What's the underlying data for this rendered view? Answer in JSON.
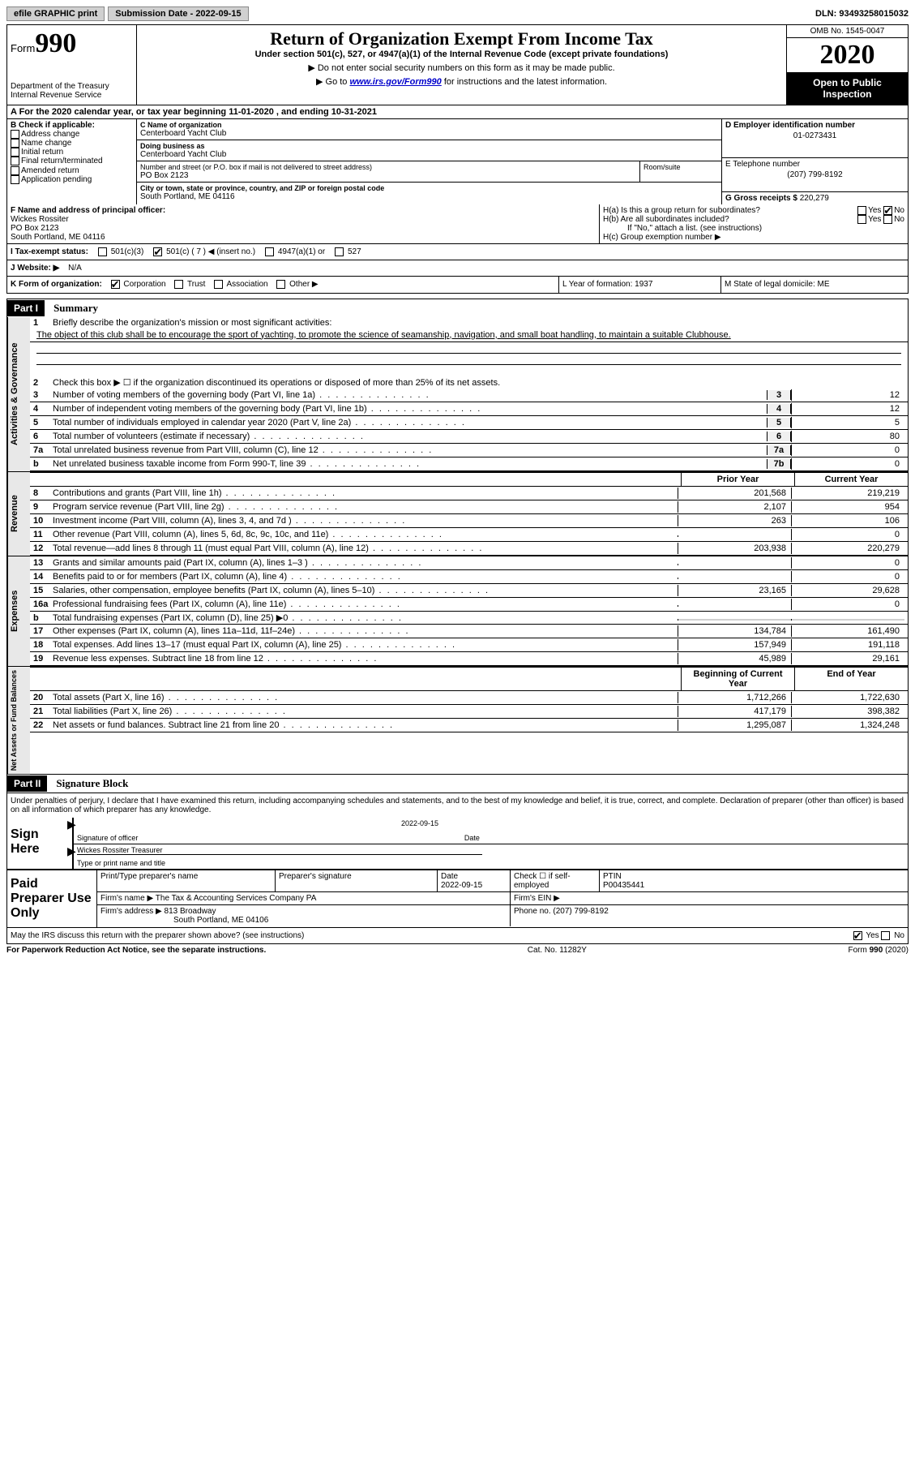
{
  "topbar": {
    "efile": "efile GRAPHIC print",
    "submission": "Submission Date - 2022-09-15",
    "dln": "DLN: 93493258015032"
  },
  "header": {
    "form_prefix": "Form",
    "form_number": "990",
    "dept": "Department of the Treasury\nInternal Revenue Service",
    "title": "Return of Organization Exempt From Income Tax",
    "subtitle": "Under section 501(c), 527, or 4947(a)(1) of the Internal Revenue Code (except private foundations)",
    "caution1": "▶ Do not enter social security numbers on this form as it may be made public.",
    "caution2_pre": "▶ Go to ",
    "caution2_link": "www.irs.gov/Form990",
    "caution2_post": " for instructions and the latest information.",
    "omb": "OMB No. 1545-0047",
    "year": "2020",
    "inspection": "Open to Public Inspection"
  },
  "row_a": "A  For the 2020 calendar year, or tax year beginning 11-01-2020     , and ending 10-31-2021",
  "section_b": {
    "label": "B Check if applicable:",
    "opts": [
      "Address change",
      "Name change",
      "Initial return",
      "Final return/terminated",
      "Amended return",
      "Application pending"
    ]
  },
  "section_c": {
    "name_label": "C Name of organization",
    "name": "Centerboard Yacht Club",
    "dba_label": "Doing business as",
    "dba": "Centerboard Yacht Club",
    "addr_label": "Number and street (or P.O. box if mail is not delivered to street address)",
    "room_label": "Room/suite",
    "addr": "PO Box 2123",
    "city_label": "City or town, state or province, country, and ZIP or foreign postal code",
    "city": "South Portland, ME  04116"
  },
  "section_d": {
    "label": "D Employer identification number",
    "value": "01-0273431"
  },
  "section_e": {
    "label": "E Telephone number",
    "value": "(207) 799-8192"
  },
  "section_g": {
    "label": "G Gross receipts $",
    "value": "220,279"
  },
  "section_f": {
    "label": "F Name and address of principal officer:",
    "name": "Wickes Rossiter",
    "addr1": "PO Box 2123",
    "addr2": "South Portland, ME  04116"
  },
  "section_h": {
    "ha": "H(a)  Is this a group return for subordinates?",
    "hb": "H(b)  Are all subordinates included?",
    "hb_note": "If \"No,\" attach a list. (see instructions)",
    "hc": "H(c)  Group exemption number ▶"
  },
  "status": {
    "label_i": "I   Tax-exempt status:",
    "opt1": "501(c)(3)",
    "opt2": "501(c) ( 7 ) ◀ (insert no.)",
    "opt3": "4947(a)(1) or",
    "opt4": "527"
  },
  "website": {
    "label": "J   Website: ▶",
    "value": "N/A"
  },
  "row_k": {
    "label": "K Form of organization:",
    "opts": [
      "Corporation",
      "Trust",
      "Association",
      "Other ▶"
    ],
    "l": "L Year of formation: 1937",
    "m": "M State of legal domicile: ME"
  },
  "part1": {
    "header": "Part I",
    "title": "Summary",
    "q1": "Briefly describe the organization's mission or most significant activities:",
    "mission": "The object of this club shall be to encourage the sport of yachting, to promote the science of seamanship, navigation, and small boat handling, to maintain a suitable Clubhouse.",
    "q2": "Check this box ▶ ☐  if the organization discontinued its operations or disposed of more than 25% of its net assets.",
    "lines_gov": [
      {
        "n": "3",
        "t": "Number of voting members of the governing body (Part VI, line 1a)",
        "box": "3",
        "v": "12"
      },
      {
        "n": "4",
        "t": "Number of independent voting members of the governing body (Part VI, line 1b)",
        "box": "4",
        "v": "12"
      },
      {
        "n": "5",
        "t": "Total number of individuals employed in calendar year 2020 (Part V, line 2a)",
        "box": "5",
        "v": "5"
      },
      {
        "n": "6",
        "t": "Total number of volunteers (estimate if necessary)",
        "box": "6",
        "v": "80"
      },
      {
        "n": "7a",
        "t": "Total unrelated business revenue from Part VIII, column (C), line 12",
        "box": "7a",
        "v": "0"
      },
      {
        "n": "b",
        "t": "Net unrelated business taxable income from Form 990-T, line 39",
        "box": "7b",
        "v": "0"
      }
    ],
    "col_prior": "Prior Year",
    "col_current": "Current Year",
    "lines_rev": [
      {
        "n": "8",
        "t": "Contributions and grants (Part VIII, line 1h)",
        "p": "201,568",
        "c": "219,219"
      },
      {
        "n": "9",
        "t": "Program service revenue (Part VIII, line 2g)",
        "p": "2,107",
        "c": "954"
      },
      {
        "n": "10",
        "t": "Investment income (Part VIII, column (A), lines 3, 4, and 7d )",
        "p": "263",
        "c": "106"
      },
      {
        "n": "11",
        "t": "Other revenue (Part VIII, column (A), lines 5, 6d, 8c, 9c, 10c, and 11e)",
        "p": "",
        "c": "0"
      },
      {
        "n": "12",
        "t": "Total revenue—add lines 8 through 11 (must equal Part VIII, column (A), line 12)",
        "p": "203,938",
        "c": "220,279"
      }
    ],
    "lines_exp": [
      {
        "n": "13",
        "t": "Grants and similar amounts paid (Part IX, column (A), lines 1–3 )",
        "p": "",
        "c": "0"
      },
      {
        "n": "14",
        "t": "Benefits paid to or for members (Part IX, column (A), line 4)",
        "p": "",
        "c": "0"
      },
      {
        "n": "15",
        "t": "Salaries, other compensation, employee benefits (Part IX, column (A), lines 5–10)",
        "p": "23,165",
        "c": "29,628"
      },
      {
        "n": "16a",
        "t": "Professional fundraising fees (Part IX, column (A), line 11e)",
        "p": "",
        "c": "0"
      },
      {
        "n": "b",
        "t": "Total fundraising expenses (Part IX, column (D), line 25) ▶0",
        "p": "shaded",
        "c": "shaded"
      },
      {
        "n": "17",
        "t": "Other expenses (Part IX, column (A), lines 11a–11d, 11f–24e)",
        "p": "134,784",
        "c": "161,490"
      },
      {
        "n": "18",
        "t": "Total expenses. Add lines 13–17 (must equal Part IX, column (A), line 25)",
        "p": "157,949",
        "c": "191,118"
      },
      {
        "n": "19",
        "t": "Revenue less expenses. Subtract line 18 from line 12",
        "p": "45,989",
        "c": "29,161"
      }
    ],
    "col_begin": "Beginning of Current Year",
    "col_end": "End of Year",
    "lines_net": [
      {
        "n": "20",
        "t": "Total assets (Part X, line 16)",
        "p": "1,712,266",
        "c": "1,722,630"
      },
      {
        "n": "21",
        "t": "Total liabilities (Part X, line 26)",
        "p": "417,179",
        "c": "398,382"
      },
      {
        "n": "22",
        "t": "Net assets or fund balances. Subtract line 21 from line 20",
        "p": "1,295,087",
        "c": "1,324,248"
      }
    ],
    "side_gov": "Activities & Governance",
    "side_rev": "Revenue",
    "side_exp": "Expenses",
    "side_net": "Net Assets or Fund Balances"
  },
  "part2": {
    "header": "Part II",
    "title": "Signature Block",
    "penalty": "Under penalties of perjury, I declare that I have examined this return, including accompanying schedules and statements, and to the best of my knowledge and belief, it is true, correct, and complete. Declaration of preparer (other than officer) is based on all information of which preparer has any knowledge.",
    "sign_here": "Sign Here",
    "sig_officer": "Signature of officer",
    "sig_date": "Date",
    "sig_date_val": "2022-09-15",
    "officer_name": "Wickes Rossiter  Treasurer",
    "type_name": "Type or print name and title",
    "paid_label": "Paid Preparer Use Only",
    "prep_name_lbl": "Print/Type preparer's name",
    "prep_sig_lbl": "Preparer's signature",
    "prep_date_lbl": "Date",
    "prep_date": "2022-09-15",
    "prep_check": "Check ☐ if self-employed",
    "ptin_lbl": "PTIN",
    "ptin": "P00435441",
    "firm_name_lbl": "Firm's name    ▶",
    "firm_name": "The Tax & Accounting Services Company PA",
    "firm_ein_lbl": "Firm's EIN ▶",
    "firm_addr_lbl": "Firm's address ▶",
    "firm_addr1": "813 Broadway",
    "firm_addr2": "South Portland, ME  04106",
    "phone_lbl": "Phone no.",
    "phone": "(207) 799-8192",
    "discuss": "May the IRS discuss this return with the preparer shown above? (see instructions)",
    "yes": "Yes",
    "no": "No"
  },
  "footer": {
    "left": "For Paperwork Reduction Act Notice, see the separate instructions.",
    "mid": "Cat. No. 11282Y",
    "right": "Form 990 (2020)"
  }
}
